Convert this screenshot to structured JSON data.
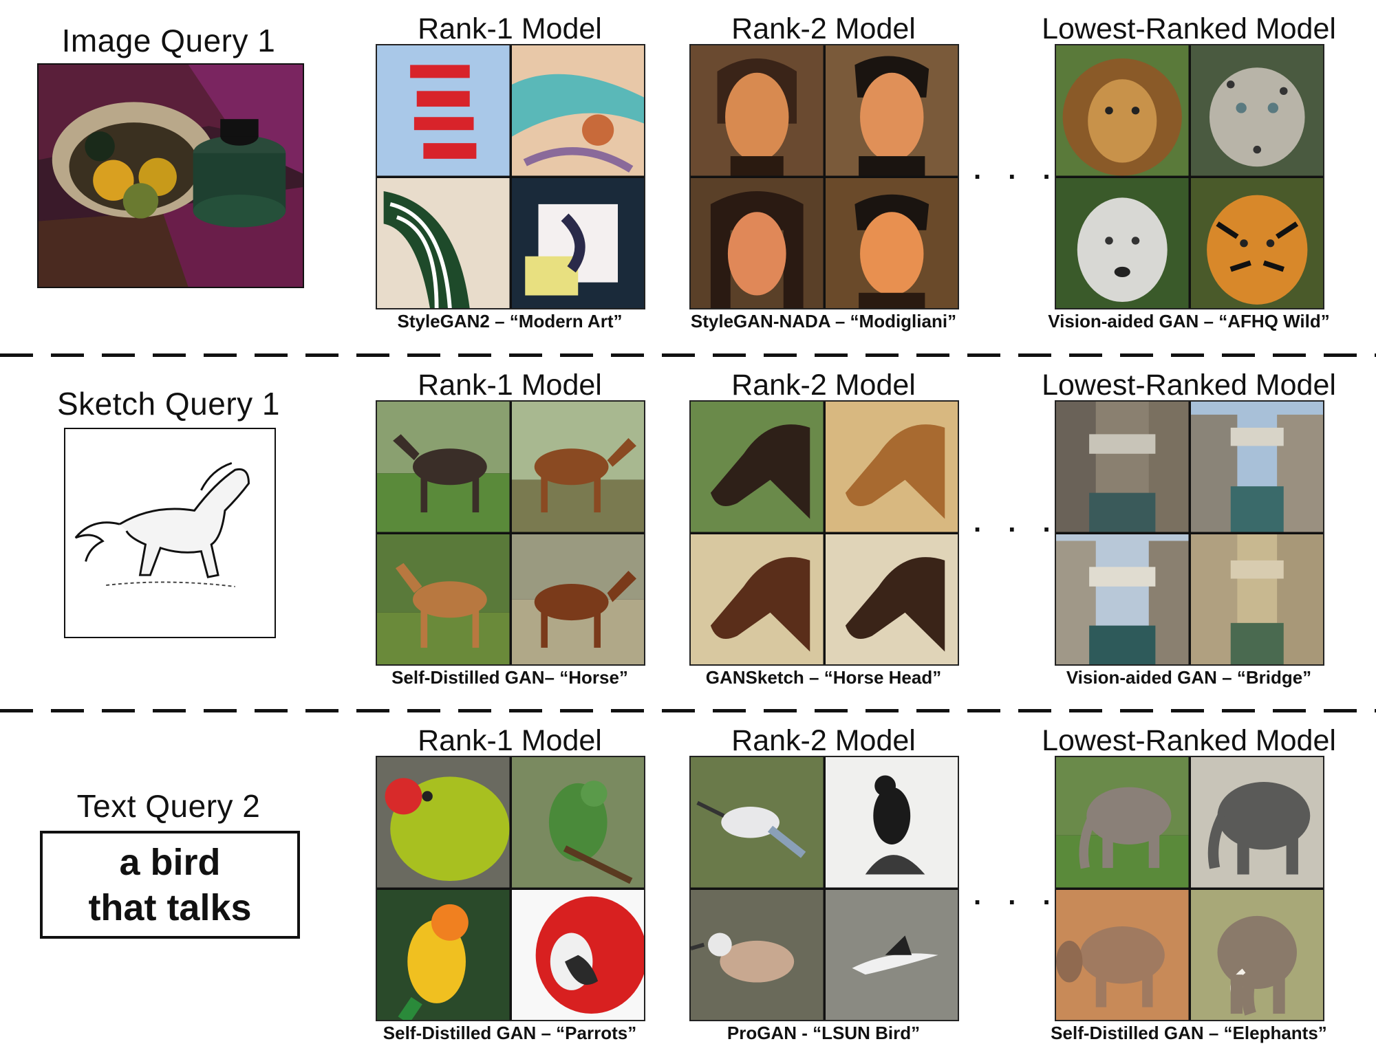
{
  "rows": [
    {
      "query_title": "Image Query 1",
      "models": [
        {
          "title": "Rank-1 Model",
          "caption": "StyleGAN2 – “Modern Art”"
        },
        {
          "title": "Rank-2 Model",
          "caption": "StyleGAN-NADA – “Modigliani”"
        },
        {
          "title": "Lowest-Ranked Model",
          "caption": "Vision-aided GAN – “AFHQ Wild”"
        }
      ],
      "ellipsis": ". . ."
    },
    {
      "query_title": "Sketch Query 1",
      "models": [
        {
          "title": "Rank-1 Model",
          "caption": "Self-Distilled GAN– “Horse”"
        },
        {
          "title": "Rank-2 Model",
          "caption": "GANSketch – “Horse Head”"
        },
        {
          "title": "Lowest-Ranked Model",
          "caption": "Vision-aided GAN – “Bridge”"
        }
      ],
      "ellipsis": ". . ."
    },
    {
      "query_title": "Text Query 2",
      "query_text_line1": "a bird",
      "query_text_line2": "that talks",
      "models": [
        {
          "title": "Rank-1 Model",
          "caption": "Self-Distilled GAN – “Parrots”"
        },
        {
          "title": "Rank-2 Model",
          "caption": "ProGAN - “LSUN Bird”"
        },
        {
          "title": "Lowest-Ranked Model",
          "caption": "Self-Distilled GAN – “Elephants”"
        }
      ],
      "ellipsis": ". . ."
    }
  ]
}
